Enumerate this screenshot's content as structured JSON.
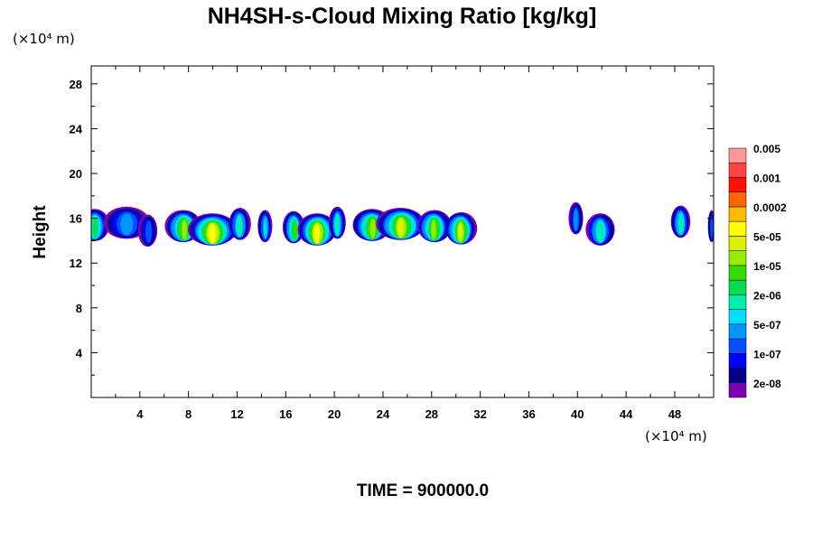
{
  "chart_data": {
    "type": "heatmap",
    "title": "NH4SH-s-Cloud Mixing Ratio [kg/kg]",
    "ylabel": "Height",
    "xlabel": "",
    "x_unit_label": "(×10⁴ m)",
    "y_unit_label": "(×10⁴ m)",
    "x_ticks": [
      4,
      8,
      12,
      16,
      20,
      24,
      28,
      32,
      36,
      40,
      44,
      48
    ],
    "y_ticks": [
      4,
      8,
      12,
      16,
      20,
      24,
      28
    ],
    "xlim": [
      0,
      51.2
    ],
    "ylim": [
      0,
      29.6
    ],
    "grid": false,
    "time_label": "TIME = 900000.0",
    "colorbar": {
      "colors": [
        "#7f00b2",
        "#00008b",
        "#0000ff",
        "#0050ff",
        "#0096ff",
        "#00ddff",
        "#00eeaa",
        "#00dd55",
        "#33dd00",
        "#99ee00",
        "#ddf000",
        "#ffff00",
        "#ffbb00",
        "#ff6600",
        "#ff1100",
        "#ff4444",
        "#ff9999"
      ],
      "labels": [
        "2e-08",
        "1e-07",
        "5e-07",
        "2e-06",
        "1e-05",
        "5e-05",
        "0.0002",
        "0.001",
        "0.005"
      ]
    },
    "cloud_features": [
      {
        "x": 0.3,
        "halfwidth": 1.2,
        "y": 15.4,
        "peak": 7
      },
      {
        "x": 2.9,
        "halfwidth": 1.9,
        "y": 15.6,
        "peak": 4
      },
      {
        "x": 4.7,
        "halfwidth": 0.8,
        "y": 14.9,
        "peak": 3
      },
      {
        "x": 7.6,
        "halfwidth": 1.5,
        "y": 15.3,
        "peak": 9
      },
      {
        "x": 10.0,
        "halfwidth": 2.0,
        "y": 15.0,
        "peak": 11
      },
      {
        "x": 12.2,
        "halfwidth": 0.9,
        "y": 15.5,
        "peak": 6
      },
      {
        "x": 14.3,
        "halfwidth": 0.6,
        "y": 15.3,
        "peak": 5
      },
      {
        "x": 16.7,
        "halfwidth": 0.9,
        "y": 15.2,
        "peak": 8
      },
      {
        "x": 18.6,
        "halfwidth": 1.6,
        "y": 15.0,
        "peak": 11
      },
      {
        "x": 20.2,
        "halfwidth": 0.7,
        "y": 15.6,
        "peak": 6
      },
      {
        "x": 23.1,
        "halfwidth": 1.6,
        "y": 15.4,
        "peak": 9
      },
      {
        "x": 25.5,
        "halfwidth": 2.0,
        "y": 15.5,
        "peak": 10
      },
      {
        "x": 28.2,
        "halfwidth": 1.4,
        "y": 15.3,
        "peak": 9
      },
      {
        "x": 30.4,
        "halfwidth": 1.3,
        "y": 15.1,
        "peak": 10
      },
      {
        "x": 39.9,
        "halfwidth": 0.6,
        "y": 16.0,
        "peak": 4
      },
      {
        "x": 41.9,
        "halfwidth": 1.2,
        "y": 15.0,
        "peak": 6
      },
      {
        "x": 48.5,
        "halfwidth": 0.8,
        "y": 15.7,
        "peak": 6
      },
      {
        "x": 51.0,
        "halfwidth": 0.3,
        "y": 15.3,
        "peak": 3
      }
    ]
  }
}
